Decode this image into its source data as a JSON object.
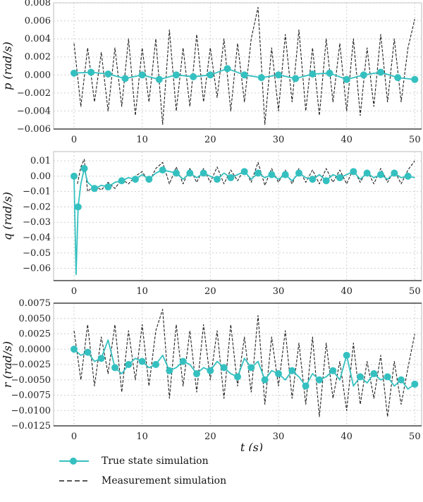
{
  "chart_data": [
    {
      "type": "line",
      "ylabel": "p (rad/s)",
      "xlabel": "",
      "xlim": [
        -3,
        51
      ],
      "ylim": [
        -0.006,
        0.008
      ],
      "x_ticks": [
        0,
        10,
        20,
        30,
        40,
        50
      ],
      "y_ticks": [
        -0.006,
        -0.004,
        -0.002,
        0.0,
        0.002,
        0.004,
        0.006,
        0.008
      ],
      "y_tick_labels": [
        "−0.006",
        "−0.004",
        "−0.002",
        "0.000",
        "0.002",
        "0.004",
        "0.006",
        "0.008"
      ],
      "grid": true,
      "series": [
        {
          "name": "True state simulation",
          "color": "#35c0c0",
          "style": "solid-with-markers",
          "x": [
            0,
            2.5,
            5,
            7.5,
            10,
            12.5,
            15,
            17.5,
            20,
            22.5,
            25,
            27.5,
            30,
            32.5,
            35,
            37.5,
            40,
            42.5,
            45,
            47.5,
            50
          ],
          "values": [
            0.0002,
            0.0003,
            0.0001,
            -0.0004,
            0.0,
            -0.0005,
            0.0,
            -0.0002,
            0.0,
            0.0007,
            0.0,
            -0.0003,
            0.0,
            -0.0004,
            0.0001,
            0.0002,
            -0.0005,
            0.0,
            0.0003,
            -0.0003,
            -0.0005
          ]
        },
        {
          "name": "Measurement simulation",
          "color": "#222222",
          "style": "dashed",
          "x": [
            0,
            1,
            2,
            3,
            4,
            5,
            6,
            7,
            8,
            9,
            10,
            11,
            12,
            13,
            14,
            15,
            16,
            17,
            18,
            19,
            20,
            21,
            22,
            23,
            24,
            25,
            26,
            27,
            28,
            29,
            30,
            31,
            32,
            33,
            34,
            35,
            36,
            37,
            38,
            39,
            40,
            41,
            42,
            43,
            44,
            45,
            46,
            47,
            48,
            49,
            50
          ],
          "values": [
            0.0035,
            -0.0035,
            0.003,
            -0.003,
            0.0025,
            -0.004,
            0.003,
            -0.0035,
            0.004,
            -0.0045,
            0.003,
            -0.003,
            0.004,
            -0.0055,
            0.005,
            -0.004,
            0.003,
            -0.0035,
            0.0045,
            -0.003,
            0.003,
            -0.0025,
            0.004,
            -0.004,
            0.0035,
            -0.003,
            0.004,
            0.0075,
            -0.0055,
            0.003,
            -0.004,
            0.0045,
            -0.003,
            0.005,
            -0.004,
            0.003,
            -0.0045,
            0.004,
            -0.003,
            0.0035,
            -0.004,
            0.004,
            -0.0045,
            0.003,
            -0.0035,
            0.0045,
            -0.003,
            0.004,
            -0.003,
            0.003,
            0.0062
          ]
        }
      ]
    },
    {
      "type": "line",
      "ylabel": "q (rad/s)",
      "xlabel": "",
      "xlim": [
        -3,
        51
      ],
      "ylim": [
        -0.068,
        0.016
      ],
      "x_ticks": [
        0,
        10,
        20,
        30,
        40,
        50
      ],
      "y_ticks": [
        0.01,
        0.0,
        -0.01,
        -0.02,
        -0.03,
        -0.04,
        -0.05,
        -0.06
      ],
      "y_tick_labels": [
        "0.01",
        "0.00",
        "−0.01",
        "−0.02",
        "−0.03",
        "−0.04",
        "−0.05",
        "−0.06"
      ],
      "grid": true,
      "series": [
        {
          "name": "True state simulation",
          "color": "#35c0c0",
          "style": "solid-with-markers",
          "x": [
            0,
            0.3,
            0.6,
            1.0,
            1.5,
            2,
            3,
            4,
            5,
            6,
            7,
            8,
            9,
            10,
            11,
            12,
            13,
            14,
            15,
            16,
            17,
            18,
            19,
            20,
            21,
            22,
            23,
            24,
            25,
            26,
            27,
            28,
            29,
            30,
            31,
            32,
            33,
            34,
            35,
            36,
            37,
            38,
            39,
            40,
            41,
            42,
            43,
            44,
            45,
            46,
            47,
            48,
            49,
            50
          ],
          "values": [
            0.0,
            -0.064,
            -0.02,
            -0.005,
            0.005,
            -0.004,
            -0.008,
            -0.006,
            -0.007,
            -0.004,
            -0.003,
            -0.001,
            -0.002,
            0.001,
            -0.002,
            0.002,
            0.004,
            0.003,
            0.002,
            -0.002,
            0.002,
            -0.001,
            0.002,
            0.0,
            -0.002,
            0.002,
            -0.001,
            0.001,
            0.003,
            -0.002,
            0.002,
            -0.001,
            0.001,
            -0.002,
            0.001,
            -0.003,
            0.002,
            -0.001,
            -0.002,
            0.001,
            -0.003,
            0.001,
            -0.001,
            0.001,
            0.003,
            -0.002,
            0.002,
            -0.001,
            0.001,
            -0.002,
            0.002,
            -0.001,
            0.0,
            -0.001
          ]
        },
        {
          "name": "Measurement simulation",
          "color": "#222222",
          "style": "dashed",
          "x": [
            0.5,
            1,
            1.5,
            2,
            3,
            4,
            5,
            6,
            7,
            8,
            9,
            10,
            11,
            12,
            13,
            14,
            15,
            16,
            17,
            18,
            19,
            20,
            21,
            22,
            23,
            24,
            25,
            26,
            27,
            28,
            29,
            30,
            31,
            32,
            33,
            34,
            35,
            36,
            37,
            38,
            39,
            40,
            41,
            42,
            43,
            44,
            45,
            46,
            47,
            48,
            49,
            50
          ],
          "values": [
            -0.005,
            0.006,
            0.011,
            -0.01,
            -0.006,
            -0.009,
            -0.004,
            -0.008,
            -0.002,
            -0.005,
            0.0,
            0.003,
            -0.004,
            0.005,
            0.009,
            -0.005,
            0.006,
            -0.005,
            0.005,
            -0.004,
            0.005,
            -0.004,
            0.006,
            -0.005,
            0.004,
            -0.003,
            0.005,
            -0.004,
            0.009,
            -0.006,
            0.005,
            -0.004,
            0.004,
            -0.005,
            0.005,
            -0.004,
            0.004,
            -0.005,
            0.005,
            -0.004,
            0.004,
            -0.005,
            0.005,
            -0.004,
            0.004,
            -0.005,
            0.005,
            -0.004,
            0.004,
            -0.005,
            0.004,
            0.01
          ]
        }
      ]
    },
    {
      "type": "line",
      "ylabel": "r (rad/s)",
      "xlabel": "t (s)",
      "xlim": [
        -3,
        51
      ],
      "ylim": [
        -0.0125,
        0.0075
      ],
      "x_ticks": [
        0,
        10,
        20,
        30,
        40,
        50
      ],
      "y_ticks": [
        0.0075,
        0.005,
        0.0025,
        0.0,
        -0.0025,
        -0.005,
        -0.0075,
        -0.01,
        -0.0125
      ],
      "y_tick_labels": [
        "0.0075",
        "0.0050",
        "0.0025",
        "0.0000",
        "−0.0025",
        "−0.0050",
        "−0.0075",
        "−0.0100",
        "−0.0125"
      ],
      "grid": true,
      "series": [
        {
          "name": "True state simulation",
          "color": "#35c0c0",
          "style": "solid-with-markers",
          "x": [
            0,
            1,
            2,
            3,
            4,
            5,
            6,
            7,
            8,
            9,
            10,
            11,
            12,
            13,
            14,
            15,
            16,
            17,
            18,
            19,
            20,
            21,
            22,
            23,
            24,
            25,
            26,
            27,
            28,
            29,
            30,
            31,
            32,
            33,
            34,
            35,
            36,
            37,
            38,
            39,
            40,
            41,
            42,
            43,
            44,
            45,
            46,
            47,
            48,
            49,
            50
          ],
          "values": [
            0.0,
            -0.001,
            -0.0005,
            -0.002,
            -0.0015,
            0.0015,
            -0.003,
            -0.004,
            -0.0025,
            -0.0015,
            -0.002,
            -0.003,
            -0.0025,
            -0.001,
            -0.0035,
            -0.003,
            -0.002,
            -0.0025,
            -0.004,
            -0.003,
            -0.0035,
            -0.002,
            -0.003,
            -0.004,
            -0.0045,
            -0.0015,
            -0.003,
            -0.002,
            -0.005,
            -0.0035,
            -0.004,
            -0.005,
            -0.0035,
            -0.0045,
            -0.006,
            -0.004,
            -0.005,
            -0.0045,
            -0.0035,
            -0.005,
            -0.001,
            -0.006,
            -0.0045,
            -0.0055,
            -0.004,
            -0.005,
            -0.0045,
            -0.006,
            -0.005,
            -0.0065,
            -0.0057
          ]
        },
        {
          "name": "Measurement simulation",
          "color": "#222222",
          "style": "dashed",
          "x": [
            0,
            1,
            2,
            3,
            4,
            5,
            6,
            7,
            8,
            9,
            10,
            11,
            12,
            13,
            14,
            15,
            16,
            17,
            18,
            19,
            20,
            21,
            22,
            23,
            24,
            25,
            26,
            27,
            28,
            29,
            30,
            31,
            32,
            33,
            34,
            35,
            36,
            37,
            38,
            39,
            40,
            41,
            42,
            43,
            44,
            45,
            46,
            47,
            48,
            49,
            50
          ],
          "values": [
            0.003,
            -0.005,
            0.004,
            -0.006,
            0.002,
            -0.004,
            0.004,
            -0.007,
            0.003,
            -0.005,
            0.004,
            -0.006,
            0.003,
            0.0065,
            -0.008,
            0.004,
            -0.006,
            0.003,
            -0.007,
            0.004,
            -0.005,
            0.003,
            -0.008,
            0.004,
            -0.006,
            0.002,
            -0.007,
            0.0055,
            -0.009,
            0.002,
            -0.006,
            0.003,
            -0.008,
            0.001,
            -0.009,
            0.002,
            -0.011,
            0.001,
            -0.008,
            -0.002,
            -0.01,
            0.001,
            -0.009,
            -0.002,
            -0.008,
            -0.001,
            -0.011,
            -0.002,
            -0.009,
            -0.003,
            0.0025
          ]
        }
      ]
    }
  ],
  "legend": {
    "entries": [
      {
        "label": "True state simulation",
        "color": "#35c0c0",
        "style": "solid-with-markers"
      },
      {
        "label": "Measurement simulation",
        "color": "#222222",
        "style": "dashed"
      }
    ]
  }
}
